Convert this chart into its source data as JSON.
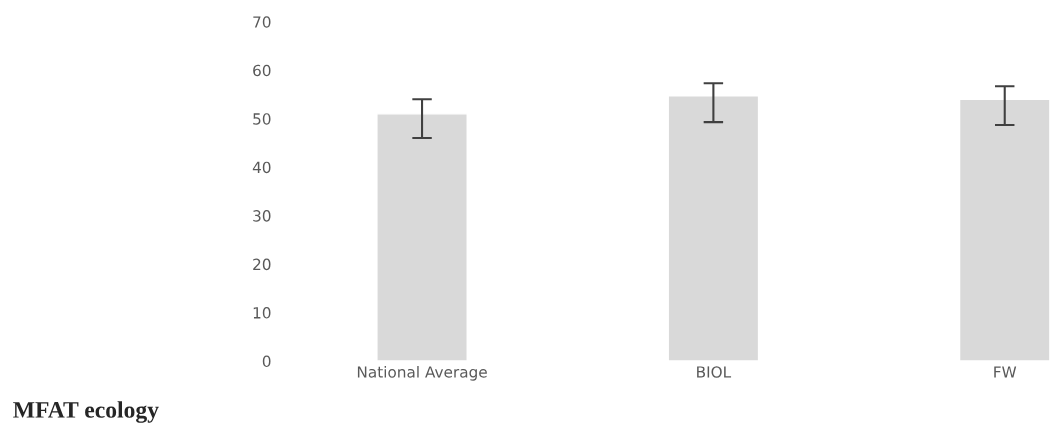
{
  "chart_data": {
    "type": "bar",
    "title": "MFAT ecology",
    "categories": [
      "National Average",
      "BIOL",
      "FW"
    ],
    "values": [
      51,
      54.7,
      54
    ],
    "errors": [
      [
        46,
        54
      ],
      [
        49.3,
        57.3
      ],
      [
        48.7,
        56.7
      ]
    ],
    "color": "#d9d9d9",
    "ylim": [
      0,
      70
    ],
    "yticks": [
      0,
      10,
      20,
      30,
      40,
      50,
      60,
      70
    ],
    "grid": false,
    "legend": false
  }
}
